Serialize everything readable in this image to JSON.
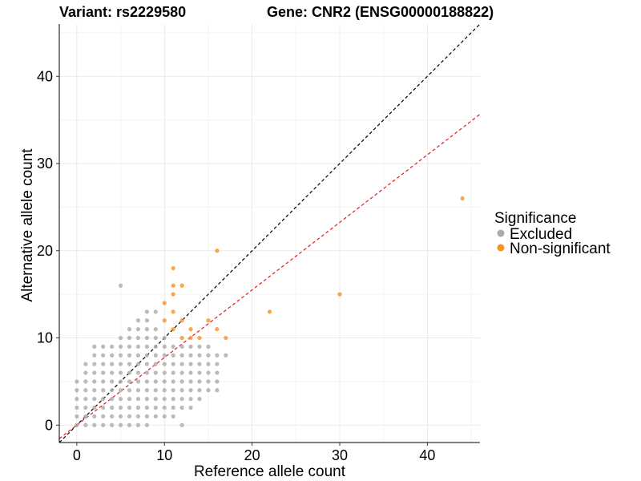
{
  "chart_data": {
    "type": "scatter",
    "title_left": "Variant: rs2229580",
    "title_right": "Gene: CNR2 (ENSG00000188822)",
    "xlabel": "Reference allele count",
    "ylabel": "Alternative allele count",
    "xlim": [
      -2,
      46
    ],
    "ylim": [
      -2,
      46
    ],
    "xticks": [
      0,
      10,
      20,
      30,
      40
    ],
    "yticks": [
      0,
      10,
      20,
      30,
      40
    ],
    "grid": true,
    "legend": {
      "title": "Significance",
      "position": "right",
      "entries": [
        {
          "label": "Excluded",
          "color": "#aaaaaa"
        },
        {
          "label": "Non-significant",
          "color": "#f7941d"
        }
      ]
    },
    "reference_lines": [
      {
        "name": "identity",
        "intercept": 0,
        "slope": 1,
        "color": "#000000",
        "dash": true
      },
      {
        "name": "fit",
        "intercept": 0,
        "slope": 0.775,
        "color": "#e31a1c",
        "dash": true
      }
    ],
    "series": [
      {
        "name": "Excluded",
        "color": "#aaaaaa",
        "points": [
          [
            0,
            0
          ],
          [
            0,
            1
          ],
          [
            0,
            2
          ],
          [
            0,
            3
          ],
          [
            0,
            4
          ],
          [
            0,
            5
          ],
          [
            1,
            0
          ],
          [
            1,
            1
          ],
          [
            1,
            2
          ],
          [
            1,
            3
          ],
          [
            1,
            4
          ],
          [
            1,
            5
          ],
          [
            1,
            6
          ],
          [
            1,
            7
          ],
          [
            2,
            0
          ],
          [
            2,
            1
          ],
          [
            2,
            2
          ],
          [
            2,
            3
          ],
          [
            2,
            4
          ],
          [
            2,
            5
          ],
          [
            2,
            6
          ],
          [
            2,
            7
          ],
          [
            2,
            8
          ],
          [
            2,
            9
          ],
          [
            3,
            0
          ],
          [
            3,
            1
          ],
          [
            3,
            2
          ],
          [
            3,
            3
          ],
          [
            3,
            4
          ],
          [
            3,
            5
          ],
          [
            3,
            6
          ],
          [
            3,
            7
          ],
          [
            3,
            8
          ],
          [
            3,
            9
          ],
          [
            4,
            0
          ],
          [
            4,
            1
          ],
          [
            4,
            2
          ],
          [
            4,
            3
          ],
          [
            4,
            4
          ],
          [
            4,
            5
          ],
          [
            4,
            6
          ],
          [
            4,
            7
          ],
          [
            4,
            8
          ],
          [
            4,
            9
          ],
          [
            5,
            0
          ],
          [
            5,
            1
          ],
          [
            5,
            2
          ],
          [
            5,
            3
          ],
          [
            5,
            4
          ],
          [
            5,
            5
          ],
          [
            5,
            6
          ],
          [
            5,
            7
          ],
          [
            5,
            8
          ],
          [
            5,
            9
          ],
          [
            5,
            10
          ],
          [
            5,
            16
          ],
          [
            6,
            0
          ],
          [
            6,
            1
          ],
          [
            6,
            2
          ],
          [
            6,
            3
          ],
          [
            6,
            4
          ],
          [
            6,
            5
          ],
          [
            6,
            6
          ],
          [
            6,
            7
          ],
          [
            6,
            8
          ],
          [
            6,
            9
          ],
          [
            6,
            10
          ],
          [
            6,
            11
          ],
          [
            7,
            0
          ],
          [
            7,
            1
          ],
          [
            7,
            2
          ],
          [
            7,
            3
          ],
          [
            7,
            4
          ],
          [
            7,
            5
          ],
          [
            7,
            6
          ],
          [
            7,
            7
          ],
          [
            7,
            8
          ],
          [
            7,
            9
          ],
          [
            7,
            10
          ],
          [
            7,
            11
          ],
          [
            7,
            12
          ],
          [
            8,
            0
          ],
          [
            8,
            1
          ],
          [
            8,
            2
          ],
          [
            8,
            3
          ],
          [
            8,
            4
          ],
          [
            8,
            5
          ],
          [
            8,
            6
          ],
          [
            8,
            7
          ],
          [
            8,
            8
          ],
          [
            8,
            9
          ],
          [
            8,
            10
          ],
          [
            8,
            11
          ],
          [
            8,
            12
          ],
          [
            8,
            13
          ],
          [
            9,
            1
          ],
          [
            9,
            2
          ],
          [
            9,
            3
          ],
          [
            9,
            4
          ],
          [
            9,
            5
          ],
          [
            9,
            6
          ],
          [
            9,
            7
          ],
          [
            9,
            8
          ],
          [
            9,
            9
          ],
          [
            9,
            10
          ],
          [
            9,
            11
          ],
          [
            9,
            13
          ],
          [
            10,
            1
          ],
          [
            10,
            2
          ],
          [
            10,
            3
          ],
          [
            10,
            4
          ],
          [
            10,
            5
          ],
          [
            10,
            6
          ],
          [
            10,
            7
          ],
          [
            10,
            8
          ],
          [
            10,
            9
          ],
          [
            10,
            10
          ],
          [
            11,
            1
          ],
          [
            11,
            2
          ],
          [
            11,
            3
          ],
          [
            11,
            4
          ],
          [
            11,
            5
          ],
          [
            11,
            6
          ],
          [
            11,
            7
          ],
          [
            11,
            8
          ],
          [
            11,
            9
          ],
          [
            12,
            0
          ],
          [
            12,
            2
          ],
          [
            12,
            3
          ],
          [
            12,
            4
          ],
          [
            12,
            5
          ],
          [
            12,
            6
          ],
          [
            12,
            7
          ],
          [
            12,
            8
          ],
          [
            12,
            9
          ],
          [
            13,
            2
          ],
          [
            13,
            3
          ],
          [
            13,
            4
          ],
          [
            13,
            5
          ],
          [
            13,
            6
          ],
          [
            13,
            7
          ],
          [
            13,
            8
          ],
          [
            13,
            9
          ],
          [
            14,
            3
          ],
          [
            14,
            4
          ],
          [
            14,
            5
          ],
          [
            14,
            6
          ],
          [
            14,
            7
          ],
          [
            14,
            8
          ],
          [
            14,
            9
          ],
          [
            15,
            4
          ],
          [
            15,
            5
          ],
          [
            15,
            6
          ],
          [
            15,
            7
          ],
          [
            15,
            8
          ],
          [
            15,
            9
          ],
          [
            16,
            4
          ],
          [
            16,
            5
          ],
          [
            16,
            6
          ],
          [
            16,
            7
          ],
          [
            16,
            8
          ],
          [
            17,
            8
          ]
        ]
      },
      {
        "name": "Non-significant",
        "color": "#f7941d",
        "points": [
          [
            10,
            12
          ],
          [
            10,
            14
          ],
          [
            11,
            11
          ],
          [
            11,
            13
          ],
          [
            11,
            15
          ],
          [
            11,
            16
          ],
          [
            11,
            18
          ],
          [
            12,
            10
          ],
          [
            12,
            12
          ],
          [
            12,
            16
          ],
          [
            13,
            10
          ],
          [
            13,
            11
          ],
          [
            14,
            10
          ],
          [
            15,
            12
          ],
          [
            16,
            11
          ],
          [
            16,
            20
          ],
          [
            17,
            10
          ],
          [
            22,
            13
          ],
          [
            30,
            15
          ],
          [
            44,
            26
          ]
        ]
      }
    ]
  }
}
